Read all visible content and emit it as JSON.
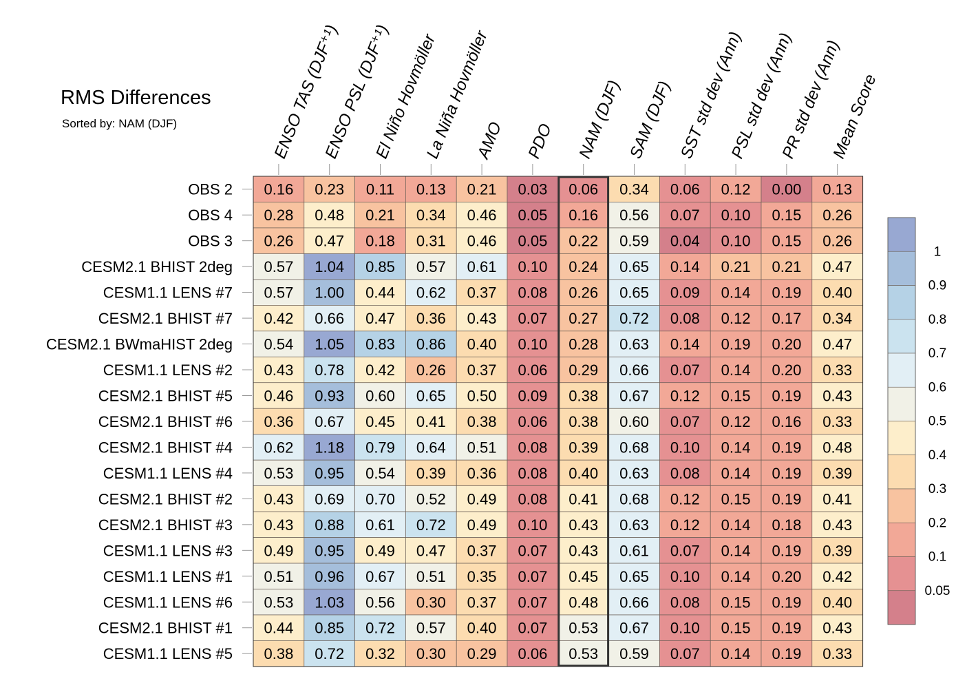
{
  "chart_data": {
    "type": "heatmap",
    "title": "RMS Differences",
    "subtitle": "Sorted by: NAM (DJF)",
    "highlighted_column": "NAM (DJF)",
    "columns": [
      "ENSO TAS (DJF⁺¹)",
      "ENSO PSL (DJF⁺¹)",
      "El Niño Hovmöller",
      "La Niña Hovmöller",
      "AMO",
      "PDO",
      "NAM (DJF)",
      "SAM (DJF)",
      "SST std dev (Ann)",
      "PSL std dev (Ann)",
      "PR std dev (Ann)",
      "Mean Score"
    ],
    "rows": [
      "OBS 2",
      "OBS 4",
      "OBS 3",
      "CESM2.1 BHIST 2deg",
      "CESM1.1 LENS #7",
      "CESM2.1 BHIST #7",
      "CESM2.1 BWmaHIST 2deg",
      "CESM1.1 LENS #2",
      "CESM2.1 BHIST #5",
      "CESM2.1 BHIST #6",
      "CESM2.1 BHIST #4",
      "CESM1.1 LENS #4",
      "CESM2.1 BHIST #2",
      "CESM2.1 BHIST #3",
      "CESM1.1 LENS #3",
      "CESM1.1 LENS #1",
      "CESM1.1 LENS #6",
      "CESM2.1 BHIST #1",
      "CESM1.1 LENS #5"
    ],
    "values": [
      [
        "0.16",
        "0.23",
        "0.11",
        "0.13",
        "0.21",
        "0.03",
        "0.06",
        "0.34",
        "0.06",
        "0.12",
        "0.00",
        "0.13"
      ],
      [
        "0.28",
        "0.48",
        "0.21",
        "0.34",
        "0.46",
        "0.05",
        "0.16",
        "0.56",
        "0.07",
        "0.10",
        "0.15",
        "0.26"
      ],
      [
        "0.26",
        "0.47",
        "0.18",
        "0.31",
        "0.46",
        "0.05",
        "0.22",
        "0.59",
        "0.04",
        "0.10",
        "0.15",
        "0.26"
      ],
      [
        "0.57",
        "1.04",
        "0.85",
        "0.57",
        "0.61",
        "0.10",
        "0.24",
        "0.65",
        "0.14",
        "0.21",
        "0.21",
        "0.47"
      ],
      [
        "0.57",
        "1.00",
        "0.44",
        "0.62",
        "0.37",
        "0.08",
        "0.26",
        "0.65",
        "0.09",
        "0.14",
        "0.19",
        "0.40"
      ],
      [
        "0.42",
        "0.66",
        "0.47",
        "0.36",
        "0.43",
        "0.07",
        "0.27",
        "0.72",
        "0.08",
        "0.12",
        "0.17",
        "0.34"
      ],
      [
        "0.54",
        "1.05",
        "0.83",
        "0.86",
        "0.40",
        "0.10",
        "0.28",
        "0.63",
        "0.14",
        "0.19",
        "0.20",
        "0.47"
      ],
      [
        "0.43",
        "0.78",
        "0.42",
        "0.26",
        "0.37",
        "0.06",
        "0.29",
        "0.66",
        "0.07",
        "0.14",
        "0.20",
        "0.33"
      ],
      [
        "0.46",
        "0.93",
        "0.60",
        "0.65",
        "0.50",
        "0.09",
        "0.38",
        "0.67",
        "0.12",
        "0.15",
        "0.19",
        "0.43"
      ],
      [
        "0.36",
        "0.67",
        "0.45",
        "0.41",
        "0.38",
        "0.06",
        "0.38",
        "0.60",
        "0.07",
        "0.12",
        "0.16",
        "0.33"
      ],
      [
        "0.62",
        "1.18",
        "0.79",
        "0.64",
        "0.51",
        "0.08",
        "0.39",
        "0.68",
        "0.10",
        "0.14",
        "0.19",
        "0.48"
      ],
      [
        "0.53",
        "0.95",
        "0.54",
        "0.39",
        "0.36",
        "0.08",
        "0.40",
        "0.63",
        "0.08",
        "0.14",
        "0.19",
        "0.39"
      ],
      [
        "0.43",
        "0.69",
        "0.70",
        "0.52",
        "0.49",
        "0.08",
        "0.41",
        "0.68",
        "0.12",
        "0.15",
        "0.19",
        "0.41"
      ],
      [
        "0.43",
        "0.88",
        "0.61",
        "0.72",
        "0.49",
        "0.10",
        "0.43",
        "0.63",
        "0.12",
        "0.14",
        "0.18",
        "0.43"
      ],
      [
        "0.49",
        "0.95",
        "0.49",
        "0.47",
        "0.37",
        "0.07",
        "0.43",
        "0.61",
        "0.07",
        "0.14",
        "0.19",
        "0.39"
      ],
      [
        "0.51",
        "0.96",
        "0.67",
        "0.51",
        "0.35",
        "0.07",
        "0.45",
        "0.65",
        "0.10",
        "0.14",
        "0.20",
        "0.42"
      ],
      [
        "0.53",
        "1.03",
        "0.56",
        "0.30",
        "0.37",
        "0.07",
        "0.48",
        "0.66",
        "0.08",
        "0.15",
        "0.19",
        "0.40"
      ],
      [
        "0.44",
        "0.85",
        "0.72",
        "0.57",
        "0.40",
        "0.07",
        "0.53",
        "0.67",
        "0.10",
        "0.15",
        "0.19",
        "0.43"
      ],
      [
        "0.38",
        "0.72",
        "0.32",
        "0.30",
        "0.29",
        "0.06",
        "0.53",
        "0.59",
        "0.07",
        "0.14",
        "0.19",
        "0.33"
      ]
    ],
    "colorbar": {
      "tick_labels": [
        "1",
        "0.9",
        "0.8",
        "0.7",
        "0.6",
        "0.5",
        "0.4",
        "0.3",
        "0.2",
        "0.1",
        "0.05"
      ],
      "bins": [
        {
          "max": 0.05,
          "color": "#d4808b"
        },
        {
          "max": 0.1,
          "color": "#e59192"
        },
        {
          "max": 0.2,
          "color": "#f2a897"
        },
        {
          "max": 0.3,
          "color": "#f8c3a0"
        },
        {
          "max": 0.4,
          "color": "#fcdcb0"
        },
        {
          "max": 0.5,
          "color": "#fdeecb"
        },
        {
          "max": 0.6,
          "color": "#f1f1e7"
        },
        {
          "max": 0.7,
          "color": "#e2eff5"
        },
        {
          "max": 0.8,
          "color": "#cbe3ef"
        },
        {
          "max": 0.9,
          "color": "#b5d2e6"
        },
        {
          "max": 1.0,
          "color": "#a5bedb"
        },
        {
          "max": 99,
          "color": "#98a8d2"
        }
      ]
    }
  }
}
